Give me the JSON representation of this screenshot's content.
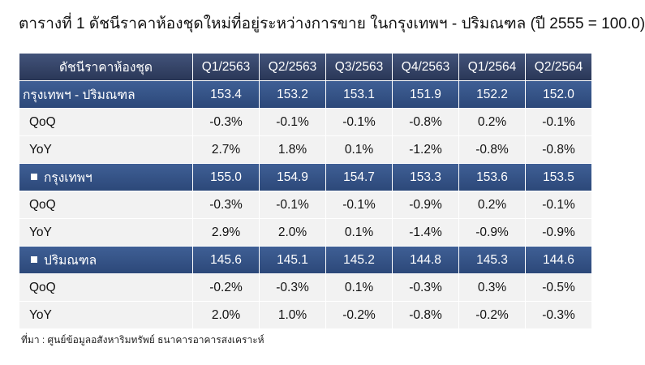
{
  "title": "ตารางที่ 1 ดัชนีราคาห้องชุดใหม่ที่อยู่ระหว่างการขาย ในกรุงเทพฯ - ปริมณฑล (ปี 2555 = 100.0)",
  "source": "ที่มา : ศูนย์ข้อมูลอสังหาริมทรัพย์ ธนาคารอาคารสงเคราะห์",
  "colors": {
    "header_bg": "#34436a",
    "index_row_bg": "#365385",
    "change_row_bg": "#f2f2f2",
    "negative": "#ee1111"
  },
  "chart_data": {
    "type": "table",
    "title": "ตารางที่ 1 ดัชนีราคาห้องชุดใหม่ที่อยู่ระหว่างการขาย ในกรุงเทพฯ - ปริมณฑล (ปี 2555 = 100.0)",
    "header": [
      "ดัชนีราคาห้องชุด",
      "Q1/2563",
      "Q2/2563",
      "Q3/2563",
      "Q4/2563",
      "Q1/2564",
      "Q2/2564"
    ],
    "rows": [
      {
        "kind": "index",
        "bullet": false,
        "label": "กรุงเทพฯ - ปริมณฑล",
        "values": [
          "153.4",
          "153.2",
          "153.1",
          "151.9",
          "152.2",
          "152.0"
        ]
      },
      {
        "kind": "change",
        "label": "QoQ",
        "values": [
          "-0.3%",
          "-0.1%",
          "-0.1%",
          "-0.8%",
          "0.2%",
          "-0.1%"
        ]
      },
      {
        "kind": "change",
        "label": "YoY",
        "values": [
          "2.7%",
          "1.8%",
          "0.1%",
          "-1.2%",
          "-0.8%",
          "-0.8%"
        ]
      },
      {
        "kind": "index",
        "bullet": true,
        "label": "กรุงเทพฯ",
        "values": [
          "155.0",
          "154.9",
          "154.7",
          "153.3",
          "153.6",
          "153.5"
        ]
      },
      {
        "kind": "change",
        "label": "QoQ",
        "values": [
          "-0.3%",
          "-0.1%",
          "-0.1%",
          "-0.9%",
          "0.2%",
          "-0.1%"
        ]
      },
      {
        "kind": "change",
        "label": "YoY",
        "values": [
          "2.9%",
          "2.0%",
          "0.1%",
          "-1.4%",
          "-0.9%",
          "-0.9%"
        ]
      },
      {
        "kind": "index",
        "bullet": true,
        "label": "ปริมณฑล",
        "values": [
          "145.6",
          "145.1",
          "145.2",
          "144.8",
          "145.3",
          "144.6"
        ]
      },
      {
        "kind": "change",
        "label": "QoQ",
        "values": [
          "-0.2%",
          "-0.3%",
          "0.1%",
          "-0.3%",
          "0.3%",
          "-0.5%"
        ]
      },
      {
        "kind": "change",
        "label": "YoY",
        "values": [
          "2.0%",
          "1.0%",
          "-0.2%",
          "-0.8%",
          "-0.2%",
          "-0.3%"
        ]
      }
    ]
  }
}
